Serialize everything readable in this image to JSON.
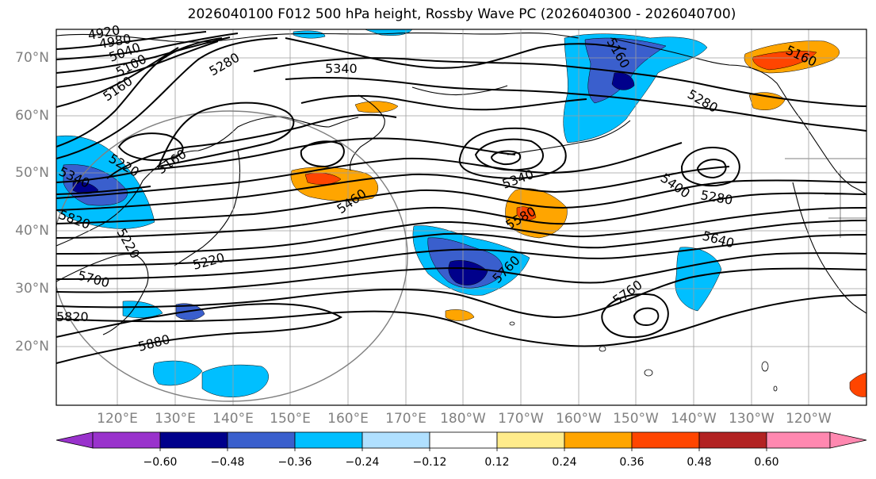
{
  "title": "2026040100 F012 500 hPa height, Rossby Wave PC (2026040300 - 2026040700)",
  "lat_labels": [
    "70°N",
    "60°N",
    "50°N",
    "40°N",
    "30°N",
    "20°N"
  ],
  "lon_labels": [
    "120°E",
    "130°E",
    "140°E",
    "150°E",
    "160°E",
    "170°E",
    "180°W",
    "170°W",
    "160°W",
    "150°W",
    "140°W",
    "130°W",
    "120°W"
  ],
  "contour_labels": [
    "4920",
    "4980",
    "5040",
    "5100",
    "5160",
    "5280",
    "5340",
    "5160",
    "5220",
    "5160",
    "5340",
    "5820",
    "5220",
    "5460",
    "5340",
    "5580",
    "5400",
    "5280",
    "5640",
    "5760",
    "5760",
    "5700",
    "5820",
    "5880",
    "5160",
    "5280",
    "5220"
  ],
  "colorbar": {
    "ticks": [
      "−0.60",
      "−0.48",
      "−0.36",
      "−0.24",
      "−0.12",
      "0.12",
      "0.24",
      "0.36",
      "0.48",
      "0.60"
    ],
    "colors": [
      "#9932cc",
      "#00008b",
      "#3a5fcd",
      "#00bfff",
      "#b0e0ff",
      "#ffffff",
      "#ffec8b",
      "#ffa500",
      "#ff4500",
      "#b22222",
      "#ff88b0"
    ]
  },
  "colors": {
    "positive_anomaly": "#ffa500",
    "negative_anomaly": "#00bfff",
    "grid": "#9e9e9e",
    "axis_label": "#808080"
  }
}
